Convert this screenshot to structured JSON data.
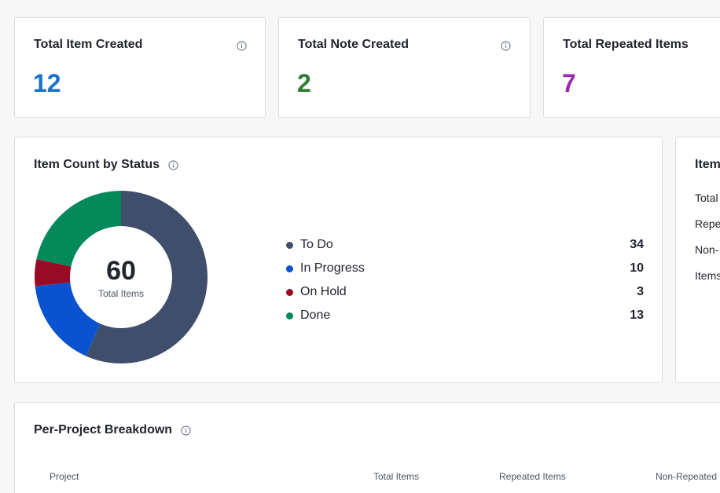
{
  "stats": [
    {
      "title": "Total Item Created",
      "value": "12",
      "color": "#1a73c9"
    },
    {
      "title": "Total Note Created",
      "value": "2",
      "color": "#2e7d32"
    },
    {
      "title": "Total Repeated Items",
      "value": "7",
      "color": "#9c27b0"
    }
  ],
  "status_card": {
    "title": "Item Count by Status",
    "total_value": "60",
    "total_label": "Total Items"
  },
  "chart_data": {
    "type": "pie",
    "categories": [
      "To Do",
      "In Progress",
      "On Hold",
      "Done"
    ],
    "values": [
      34,
      10,
      3,
      13
    ],
    "colors": [
      "#3f4f6b",
      "#0a53d0",
      "#990a25",
      "#04895b"
    ]
  },
  "side_card": {
    "title": "Item",
    "rows": [
      "Total",
      "Repe",
      "Non-",
      "Items"
    ]
  },
  "project_card": {
    "title": "Per-Project Breakdown",
    "columns": [
      "Project",
      "Total Items",
      "Repeated Items",
      "Non-Repeated"
    ]
  },
  "icons": {
    "info": "info-circle-icon"
  }
}
